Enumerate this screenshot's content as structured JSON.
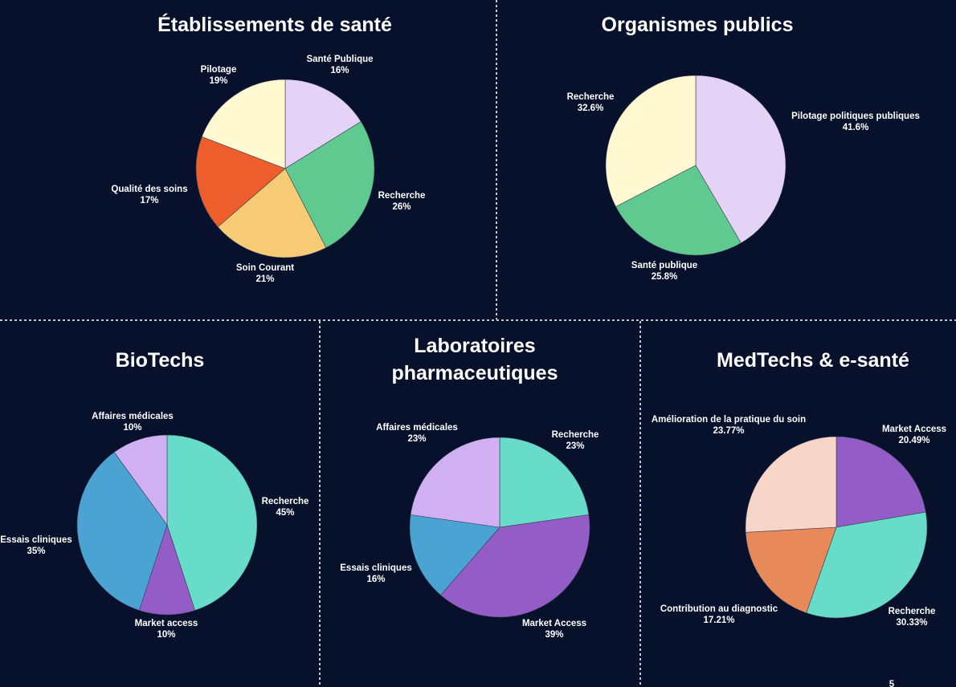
{
  "page_number": "5",
  "chart_data": [
    {
      "type": "pie",
      "title": "Établissements de santé",
      "slices": [
        {
          "name": "Santé Publique",
          "value": 16,
          "label": "16%",
          "color": "#e5d3f7"
        },
        {
          "name": "Recherche",
          "value": 26,
          "label": "26%",
          "color": "#5fc990"
        },
        {
          "name": "Soin Courant",
          "value": 21,
          "label": "21%",
          "color": "#f7cb75"
        },
        {
          "name": "Qualité des soins",
          "value": 17,
          "label": "17%",
          "color": "#ee5e2c"
        },
        {
          "name": "Pilotage",
          "value": 19,
          "label": "19%",
          "color": "#fff8d1"
        }
      ]
    },
    {
      "type": "pie",
      "title": "Organismes publics",
      "slices": [
        {
          "name": "Pilotage politiques publiques",
          "value": 41.6,
          "label": "41.6%",
          "color": "#e5d3f7"
        },
        {
          "name": "Santé publique",
          "value": 25.8,
          "label": "25.8%",
          "color": "#5fc990"
        },
        {
          "name": "Recherche",
          "value": 32.6,
          "label": "32.6%",
          "color": "#fff8d1"
        }
      ]
    },
    {
      "type": "pie",
      "title": "BioTechs",
      "slices": [
        {
          "name": "Recherche",
          "value": 45,
          "label": "45%",
          "color": "#66dcc9"
        },
        {
          "name": "Market access",
          "value": 10,
          "label": "10%",
          "color": "#935cc6"
        },
        {
          "name": "Essais cliniques",
          "value": 35,
          "label": "35%",
          "color": "#4aa3d3"
        },
        {
          "name": "Affaires médicales",
          "value": 10,
          "label": "10%",
          "color": "#d0b0f3"
        }
      ]
    },
    {
      "type": "pie",
      "title": "Laboratoires pharmaceutiques",
      "slices": [
        {
          "name": "Recherche",
          "value": 23,
          "label": "23%",
          "color": "#66dcc9"
        },
        {
          "name": "Market Access",
          "value": 39,
          "label": "39%",
          "color": "#935cc6"
        },
        {
          "name": "Essais cliniques",
          "value": 16,
          "label": "16%",
          "color": "#4aa3d3"
        },
        {
          "name": "Affaires médicales",
          "value": 23,
          "label": "23%",
          "color": "#d0b0f3"
        }
      ]
    },
    {
      "type": "pie",
      "title": "MedTechs & e-santé",
      "slices": [
        {
          "name": "Market Access",
          "value": 20.49,
          "label": "20.49%",
          "color": "#935cc6"
        },
        {
          "name": "Recherche",
          "value": 30.33,
          "label": "30.33%",
          "color": "#66dcc9"
        },
        {
          "name": "Contribution au diagnostic",
          "value": 17.21,
          "label": "17.21%",
          "color": "#e8895a"
        },
        {
          "name": "Amélioration de la pratique du soin",
          "value": 23.77,
          "label": "23.77%",
          "color": "#f7d5c8"
        }
      ]
    }
  ]
}
